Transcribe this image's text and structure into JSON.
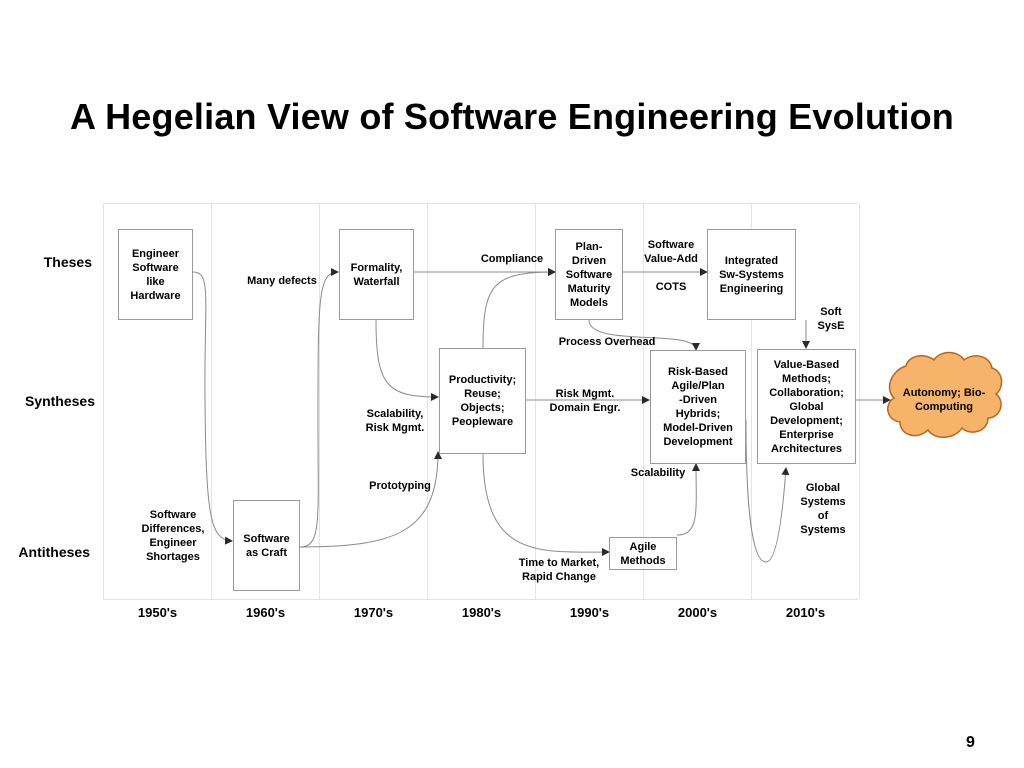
{
  "title": "A Hegelian View of Software Engineering Evolution",
  "rows": {
    "theses": "Theses",
    "syntheses": "Syntheses",
    "antitheses": "Antitheses"
  },
  "decades": [
    "1950's",
    "1960's",
    "1970's",
    "1980's",
    "1990's",
    "2000's",
    "2010's"
  ],
  "boxes": {
    "engineer_software": "Engineer\nSoftware\nlike\nHardware",
    "formality_waterfall": "Formality,\nWaterfall",
    "plan_driven": "Plan-\nDriven\nSoftware\nMaturity\nModels",
    "integrated": "Integrated\nSw-Systems\nEngineering",
    "productivity": "Productivity;\nReuse;\nObjects;\nPeopleware",
    "risk_based": "Risk-Based\nAgile/Plan\n-Driven\nHybrids;\nModel-Driven\nDevelopment",
    "value_based": "Value-Based\nMethods;\nCollaboration;\nGlobal\nDevelopment;\nEnterprise\nArchitectures",
    "software_craft": "Software\nas Craft",
    "agile_methods": "Agile\nMethods",
    "autonomy": "Autonomy; Bio-\nComputing"
  },
  "labels": {
    "many_defects": "Many defects",
    "compliance": "Compliance",
    "software_value_add": "Software\nValue-Add",
    "cots": "COTS",
    "soft_syse": "Soft\nSysE",
    "process_overhead": "Process Overhead",
    "risk_mgmt_domain": "Risk Mgmt.\nDomain Engr.",
    "scalability_risk": "Scalability,\nRisk Mgmt.",
    "scalability": "Scalability",
    "prototyping": "Prototyping",
    "global_systems": "Global\nSystems\nof\nSystems",
    "software_differences": "Software\nDifferences,\nEngineer\nShortages",
    "time_to_market": "Time to Market,\nRapid Change"
  },
  "colors": {
    "cloud_fill": "#f6b46a",
    "cloud_stroke": "#b8651e",
    "grid_line": "#e3e3e3",
    "box_border": "#9a9a9a",
    "arrow": "#8a8a8a"
  },
  "page_number": "9"
}
